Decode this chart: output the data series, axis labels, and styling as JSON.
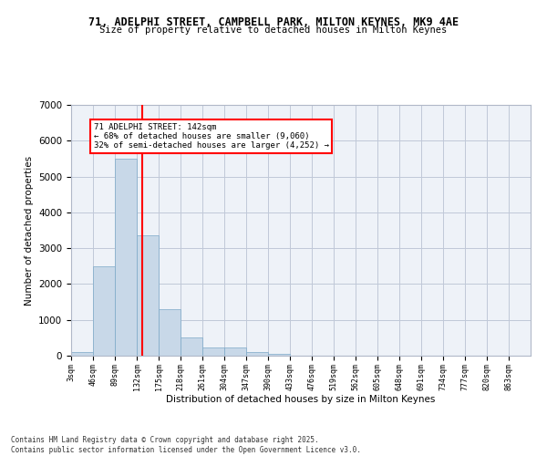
{
  "title_line1": "71, ADELPHI STREET, CAMPBELL PARK, MILTON KEYNES, MK9 4AE",
  "title_line2": "Size of property relative to detached houses in Milton Keynes",
  "xlabel": "Distribution of detached houses by size in Milton Keynes",
  "ylabel": "Number of detached properties",
  "bar_values": [
    100,
    2500,
    5500,
    3350,
    1300,
    500,
    220,
    220,
    100,
    60,
    0,
    0,
    0,
    0,
    0,
    0,
    0,
    0,
    0,
    0
  ],
  "bin_labels": [
    "3sqm",
    "46sqm",
    "89sqm",
    "132sqm",
    "175sqm",
    "218sqm",
    "261sqm",
    "304sqm",
    "347sqm",
    "390sqm",
    "433sqm",
    "476sqm",
    "519sqm",
    "562sqm",
    "605sqm",
    "648sqm",
    "691sqm",
    "734sqm",
    "777sqm",
    "820sqm",
    "863sqm"
  ],
  "bar_color": "#c8d8e8",
  "bar_edge_color": "#7ca8c8",
  "grid_color": "#c0c8d8",
  "bg_color": "#eef2f8",
  "vline_x": 142,
  "vline_color": "red",
  "annotation_text": "71 ADELPHI STREET: 142sqm\n← 68% of detached houses are smaller (9,060)\n32% of semi-detached houses are larger (4,252) →",
  "annotation_box_color": "red",
  "footer_text": "Contains HM Land Registry data © Crown copyright and database right 2025.\nContains public sector information licensed under the Open Government Licence v3.0.",
  "ylim": [
    0,
    7000
  ],
  "bin_edges": [
    3,
    46,
    89,
    132,
    175,
    218,
    261,
    304,
    347,
    390,
    433,
    476,
    519,
    562,
    605,
    648,
    691,
    734,
    777,
    820,
    863
  ]
}
